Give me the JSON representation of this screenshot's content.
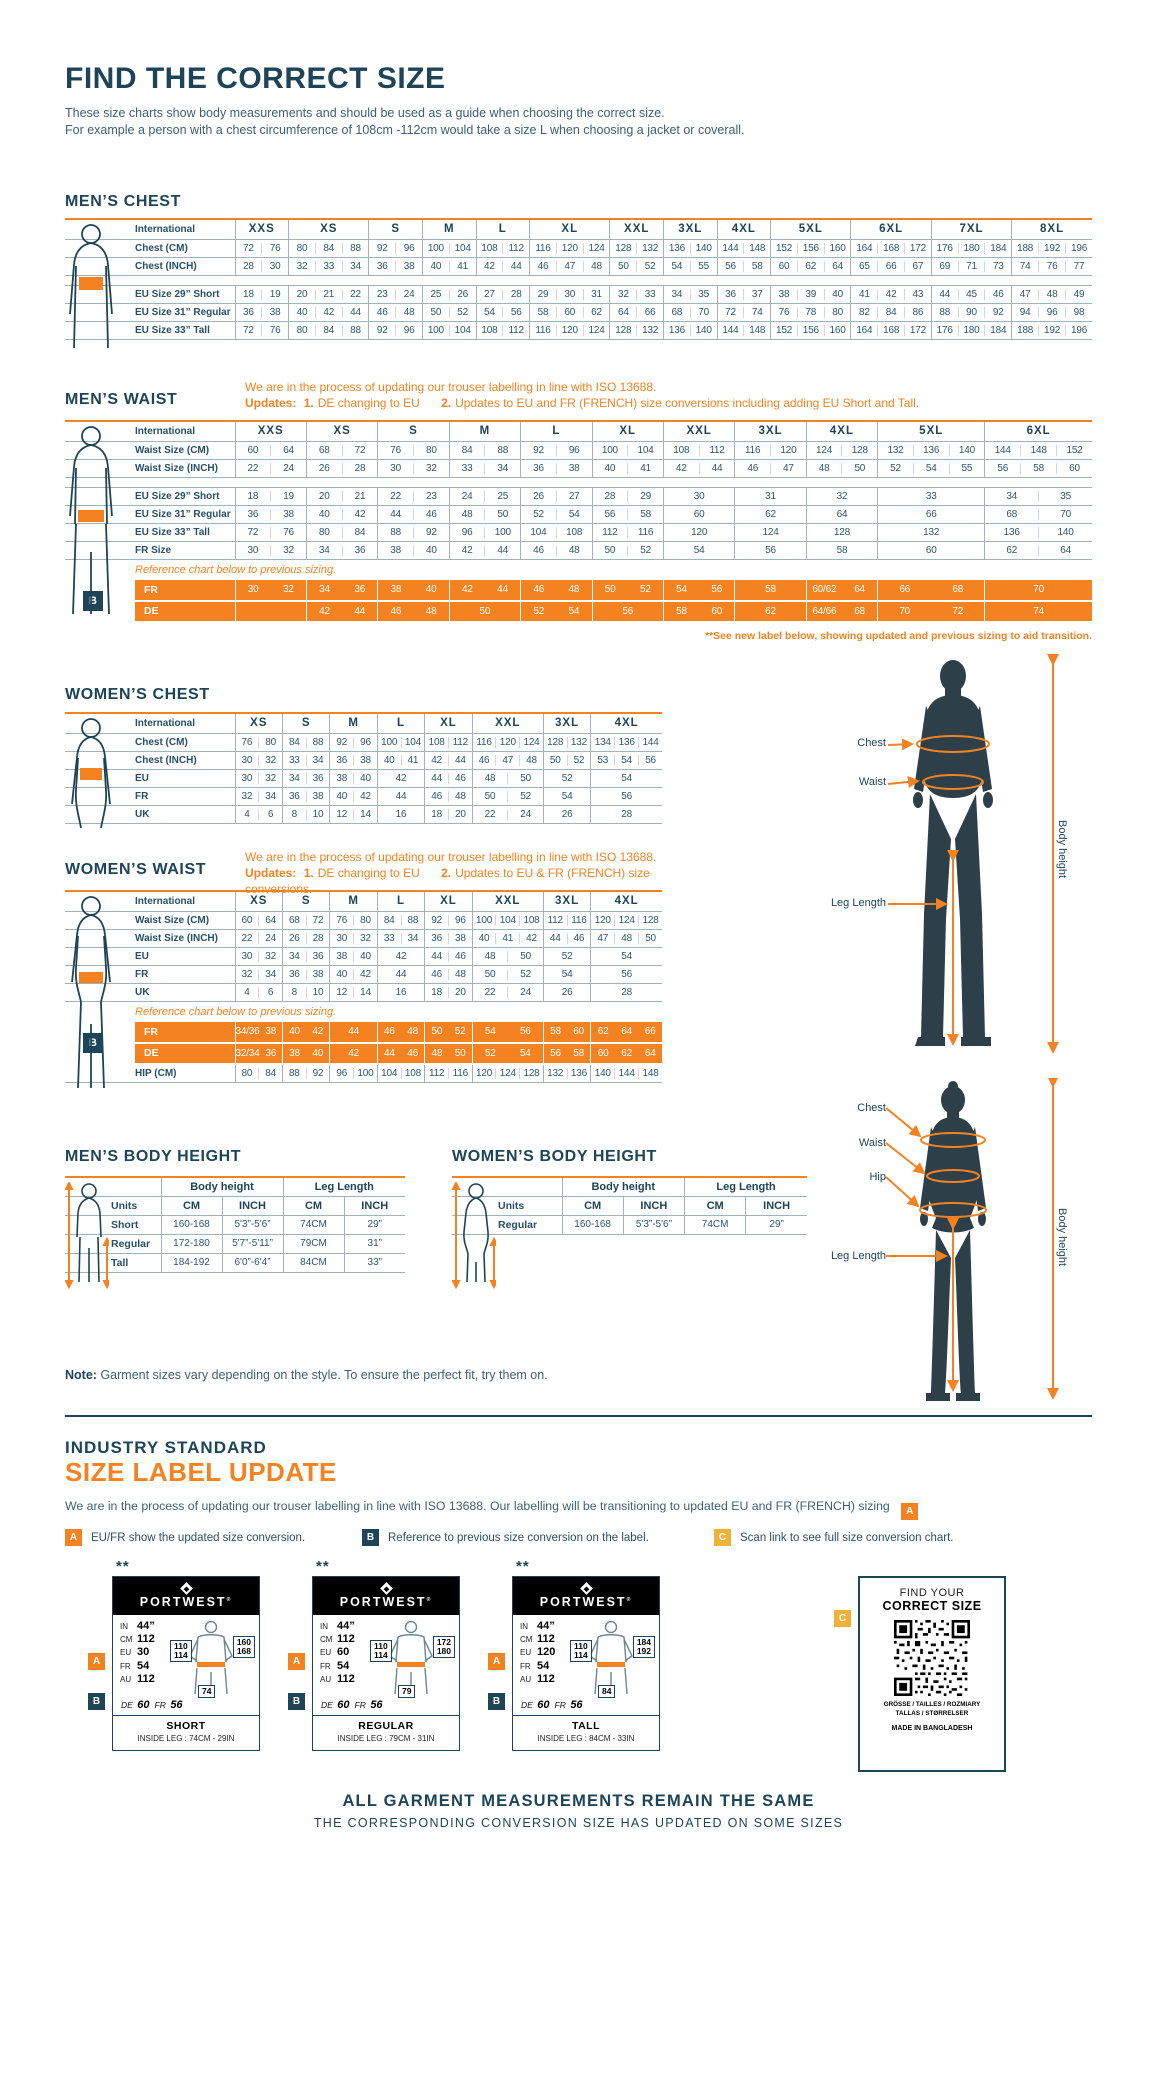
{
  "header": {
    "title": "FIND THE CORRECT SIZE",
    "subtitle1": "These size charts show body measurements and should be used as a guide when choosing the correct size.",
    "subtitle2": "For example a person with a chest circumference of 108cm -112cm would take a size L when choosing a jacket or coverall."
  },
  "mens_chest": {
    "heading": "MEN’S CHEST",
    "first_col": "International",
    "sizes": [
      "XXS",
      "XS",
      "S",
      "M",
      "L",
      "XL",
      "XXL",
      "3XL",
      "4XL",
      "5XL",
      "6XL",
      "7XL",
      "8XL"
    ],
    "spans": [
      2,
      3,
      2,
      2,
      2,
      3,
      2,
      2,
      2,
      3,
      3,
      3,
      3
    ],
    "rows": [
      {
        "label": "Chest (CM)",
        "cells": [
          "72 76",
          "80 84 88",
          "92 96",
          "100 104",
          "108 112",
          "116 120 124",
          "128 132",
          "136 140",
          "144 148",
          "152 156 160",
          "164 168 172",
          "176 180 184",
          "188 192 196"
        ]
      },
      {
        "label": "Chest (INCH)",
        "cells": [
          "28 30",
          "32 33 34",
          "36 38",
          "40 41",
          "42 44",
          "46 47 48",
          "50 52",
          "54 55",
          "56 58",
          "60 62 64",
          "65 66 67",
          "69 71 73",
          "74 76 77"
        ]
      },
      {
        "type": "gap"
      },
      {
        "label": "EU Size 29” Short",
        "cells": [
          "18 19",
          "20 21 22",
          "23 24",
          "25 26",
          "27 28",
          "29 30 31",
          "32 33",
          "34 35",
          "36 37",
          "38 39 40",
          "41 42 43",
          "44 45 46",
          "47 48 49"
        ]
      },
      {
        "label": "EU Size 31” Regular",
        "cells": [
          "36 38",
          "40 42 44",
          "46 48",
          "50 52",
          "54 56",
          "58 60 62",
          "64 66",
          "68 70",
          "72 74",
          "76 78 80",
          "82 84 86",
          "88 90 92",
          "94 96 98"
        ]
      },
      {
        "label": "EU Size 33” Tall",
        "cells": [
          "72 76",
          "80 84 88",
          "92 96",
          "100 104",
          "108 112",
          "116 120 124",
          "128 132",
          "136 140",
          "144 148",
          "152 156 160",
          "164 168 172",
          "176 180 184",
          "188 192 196"
        ]
      }
    ]
  },
  "mens_waist": {
    "heading": "MEN’S WAIST",
    "iso_note": "We are in the process of updating our trouser labelling in line with ISO 13688.",
    "updates_label": "Updates:",
    "update1_num": "1.",
    "update1": "DE changing to EU",
    "update2_num": "2.",
    "update2": "Updates to EU and FR (FRENCH) size conversions including adding EU Short and Tall.",
    "first_col": "International",
    "sizes": [
      "XXS",
      "XS",
      "S",
      "M",
      "L",
      "XL",
      "XXL",
      "3XL",
      "4XL",
      "5XL",
      "6XL"
    ],
    "spans": [
      2,
      2,
      2,
      2,
      2,
      2,
      2,
      2,
      2,
      3,
      3
    ],
    "rows": [
      {
        "label": "Waist Size (CM)",
        "cells": [
          "60 64",
          "68 72",
          "76 80",
          "84 88",
          "92 96",
          "100 104",
          "108 112",
          "116 120",
          "124 128",
          "132 136 140",
          "144 148 152"
        ]
      },
      {
        "label": "Waist Size (INCH)",
        "cells": [
          "22 24",
          "26 28",
          "30 32",
          "33 34",
          "36 38",
          "40 41",
          "42 44",
          "46 47",
          "48 50",
          "52 54 55",
          "56 58 60"
        ]
      },
      {
        "type": "gap"
      },
      {
        "label": "EU Size 29” Short",
        "cells": [
          "18 19",
          "20 21",
          "22 23",
          "24 25",
          "26 27",
          "28 29",
          "30",
          "31",
          "32",
          "33",
          "34 35"
        ]
      },
      {
        "label": "EU Size 31” Regular",
        "cells": [
          "36 38",
          "40 42",
          "44 46",
          "48 50",
          "52 54",
          "56 58",
          "60",
          "62",
          "64",
          "66",
          "68 70"
        ]
      },
      {
        "label": "EU Size 33” Tall",
        "cells": [
          "72 76",
          "80 84",
          "88 92",
          "96 100",
          "104 108",
          "112 116",
          "120",
          "124",
          "128",
          "132",
          "136 140"
        ]
      },
      {
        "label": "FR Size",
        "cells": [
          "30 32",
          "34 36",
          "38 40",
          "42 44",
          "46 48",
          "50 52",
          "54",
          "56",
          "58",
          "60",
          "62 64"
        ]
      }
    ],
    "ref_note": "Reference chart below to previous sizing.",
    "ref_badge": "B",
    "ref_rows": [
      {
        "label": "FR",
        "cells": [
          "30 32",
          "34 36",
          "38 40",
          "42 44",
          "46 48",
          "50 52",
          "54 56",
          "58",
          "60/62 64",
          "66 68",
          "70"
        ]
      },
      {
        "label": "DE",
        "cells": [
          "",
          "42 44",
          "46 48",
          "50",
          "52 54",
          "56",
          "58 60",
          "62",
          "64/66 68",
          "70 72",
          "74"
        ]
      }
    ],
    "footnote": "**See new label below, showing updated and previous sizing to aid transition."
  },
  "womens_chest": {
    "heading": "WOMEN’S CHEST",
    "first_col": "International",
    "sizes": [
      "XS",
      "S",
      "M",
      "L",
      "XL",
      "XXL",
      "3XL",
      "4XL"
    ],
    "spans": [
      2,
      2,
      2,
      2,
      2,
      3,
      2,
      3
    ],
    "rows": [
      {
        "label": "Chest (CM)",
        "cells": [
          "76 80",
          "84 88",
          "92 96",
          "100 104",
          "108 112",
          "116 120 124",
          "128 132",
          "134 136 144"
        ]
      },
      {
        "label": "Chest (INCH)",
        "cells": [
          "30 32",
          "33 34",
          "36 38",
          "40 41",
          "42 44",
          "46 47 48",
          "50 52",
          "53 54 56"
        ]
      },
      {
        "label": "EU",
        "cells": [
          "30 32",
          "34 36",
          "38 40",
          "42",
          "44 46",
          "48 50",
          "52",
          "54"
        ]
      },
      {
        "label": "FR",
        "cells": [
          "32 34",
          "36 38",
          "40 42",
          "44",
          "46 48",
          "50 52",
          "54",
          "56"
        ]
      },
      {
        "label": "UK",
        "cells": [
          "4 6",
          "8 10",
          "12 14",
          "16",
          "18 20",
          "22 24",
          "26",
          "28"
        ]
      }
    ]
  },
  "womens_waist": {
    "heading": "WOMEN’S WAIST",
    "iso_note": "We are in the process of updating our trouser labelling in line with ISO 13688.",
    "updates_label": "Updates:",
    "update1_num": "1.",
    "update1": "DE changing to EU",
    "update2_num": "2.",
    "update2": "Updates to EU & FR (FRENCH) size conversions.",
    "first_col": "International",
    "sizes": [
      "XS",
      "S",
      "M",
      "L",
      "XL",
      "XXL",
      "3XL",
      "4XL"
    ],
    "spans": [
      2,
      2,
      2,
      2,
      2,
      3,
      2,
      3
    ],
    "rows": [
      {
        "label": "Waist Size (CM)",
        "cells": [
          "60 64",
          "68 72",
          "76 80",
          "84 88",
          "92 96",
          "100 104 108",
          "112 116",
          "120 124 128"
        ]
      },
      {
        "label": "Waist Size (INCH)",
        "cells": [
          "22 24",
          "26 28",
          "30 32",
          "33 34",
          "36 38",
          "40 41 42",
          "44 46",
          "47 48 50"
        ]
      },
      {
        "label": "EU",
        "cells": [
          "30 32",
          "34 36",
          "38 40",
          "42",
          "44 46",
          "48 50",
          "52",
          "54"
        ]
      },
      {
        "label": "FR",
        "cells": [
          "32 34",
          "36 38",
          "40 42",
          "44",
          "46 48",
          "50 52",
          "54",
          "56"
        ]
      },
      {
        "label": "UK",
        "cells": [
          "4 6",
          "8 10",
          "12 14",
          "16",
          "18 20",
          "22 24",
          "26",
          "28"
        ]
      }
    ],
    "ref_note": "Reference chart below to previous sizing.",
    "ref_badge": "B",
    "ref_rows": [
      {
        "label": "FR",
        "cells": [
          "34/36 38",
          "40 42",
          "44",
          "46 48",
          "50 52",
          "54 56",
          "58 60",
          "62 64 66"
        ]
      },
      {
        "label": "DE",
        "cells": [
          "32/34 36",
          "38 40",
          "42",
          "44 46",
          "48 50",
          "52 54",
          "56 58",
          "60 62 64"
        ]
      }
    ],
    "post_rows": [
      {
        "label": "HIP (CM)",
        "cells": [
          "80 84",
          "88 92",
          "96 100",
          "104 108",
          "112 116",
          "120 124 128",
          "132 136",
          "140 144 148"
        ]
      }
    ]
  },
  "figure_labels": {
    "chest": "Chest",
    "waist": "Waist",
    "hip": "Hip",
    "leg": "Leg Length",
    "body_height": "Body height"
  },
  "mens_body_height": {
    "heading": "MEN’S BODY HEIGHT",
    "group1": "Body height",
    "group2": "Leg Length",
    "headers": [
      "Units",
      "CM",
      "INCH",
      "CM",
      "INCH"
    ],
    "rows": [
      [
        "Short",
        "160-168",
        "5'3”-5'6”",
        "74CM",
        "29”"
      ],
      [
        "Regular",
        "172-180",
        "5'7”-5'11”",
        "79CM",
        "31”"
      ],
      [
        "Tall",
        "184-192",
        "6'0”-6'4”",
        "84CM",
        "33”"
      ]
    ]
  },
  "womens_body_height": {
    "heading": "WOMEN’S BODY HEIGHT",
    "group1": "Body height",
    "group2": "Leg Length",
    "headers": [
      "Units",
      "CM",
      "INCH",
      "CM",
      "INCH"
    ],
    "rows": [
      [
        "Regular",
        "160-168",
        "5'3”-5'6”",
        "74CM",
        "29”"
      ]
    ]
  },
  "note": {
    "label": "Note:",
    "text": "Garment sizes vary depending on the style. To ensure the perfect fit, try them on."
  },
  "label_update": {
    "heading1": "INDUSTRY STANDARD",
    "heading2": "SIZE LABEL UPDATE",
    "intro": "We are in the process of updating our trouser labelling in line with ISO 13688. Our labelling will be transitioning to updated EU and FR (FRENCH) sizing",
    "intro_badge": "A",
    "legend": [
      {
        "badge": "A",
        "text": "EU/FR show the updated size conversion."
      },
      {
        "badge": "B",
        "text": "Reference to previous size conversion on the label."
      },
      {
        "badge": "C",
        "text": "Scan link to see full size conversion chart."
      }
    ],
    "stars": "**",
    "brand": "PORTWEST",
    "reg": "®",
    "cards": [
      {
        "specs": [
          [
            "IN",
            "44”"
          ],
          [
            "CM",
            "112"
          ],
          [
            "EU",
            "30"
          ],
          [
            "FR",
            "54"
          ],
          [
            "AU",
            "112"
          ]
        ],
        "de_label": "DE",
        "de_value": "60",
        "fr_label": "FR",
        "fr_value": "56",
        "chest_box": [
          "110",
          "114"
        ],
        "height_box": [
          "160",
          "168"
        ],
        "leg_box": "74",
        "fit": "SHORT",
        "inside_leg": "INSIDE LEG : 74CM - 29IN"
      },
      {
        "specs": [
          [
            "IN",
            "44”"
          ],
          [
            "CM",
            "112"
          ],
          [
            "EU",
            "60"
          ],
          [
            "FR",
            "54"
          ],
          [
            "AU",
            "112"
          ]
        ],
        "de_label": "DE",
        "de_value": "60",
        "fr_label": "FR",
        "fr_value": "56",
        "chest_box": [
          "110",
          "114"
        ],
        "height_box": [
          "172",
          "180"
        ],
        "leg_box": "79",
        "fit": "REGULAR",
        "inside_leg": "INSIDE LEG : 79CM - 31IN"
      },
      {
        "specs": [
          [
            "IN",
            "44”"
          ],
          [
            "CM",
            "112"
          ],
          [
            "EU",
            "120"
          ],
          [
            "FR",
            "54"
          ],
          [
            "AU",
            "112"
          ]
        ],
        "de_label": "DE",
        "de_value": "60",
        "fr_label": "FR",
        "fr_value": "56",
        "chest_box": [
          "110",
          "114"
        ],
        "height_box": [
          "184",
          "192"
        ],
        "leg_box": "84",
        "fit": "TALL",
        "inside_leg": "INSIDE LEG : 84CM - 33IN"
      }
    ],
    "qr_card": {
      "badge": "C",
      "find": "FIND YOUR",
      "correct": "CORRECT SIZE",
      "langs1": "GRÖSSE / TAILLES / ROZMIARY",
      "langs2": "TALLAS / STØRRELSER",
      "made": "MADE IN BANGLADESH"
    },
    "footer1": "ALL GARMENT MEASUREMENTS REMAIN THE SAME",
    "footer2": "THE CORRESPONDING CONVERSION SIZE HAS UPDATED ON SOME SIZES"
  }
}
